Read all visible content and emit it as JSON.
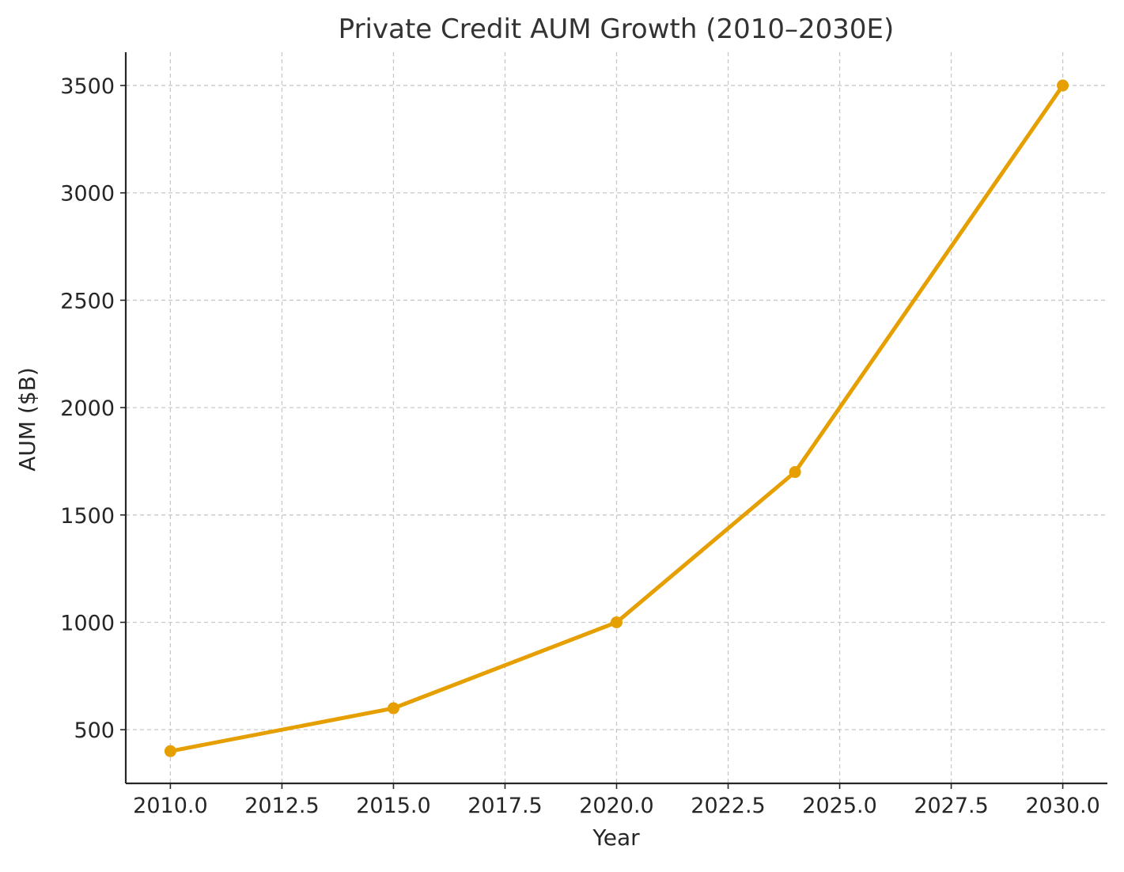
{
  "chart_data": {
    "type": "line",
    "title": "Private Credit AUM Growth (2010–2030E)",
    "xlabel": "Year",
    "ylabel": "AUM ($B)",
    "x": [
      2010,
      2015,
      2020,
      2024,
      2030
    ],
    "series": [
      {
        "values": [
          400,
          600,
          1000,
          1700,
          3500
        ],
        "color": "#E69F00"
      }
    ],
    "xlim": [
      2009.0,
      2031.0
    ],
    "ylim": [
      250,
      3655
    ],
    "xticks": [
      2010.0,
      2012.5,
      2015.0,
      2017.5,
      2020.0,
      2022.5,
      2025.0,
      2027.5,
      2030.0
    ],
    "xtick_labels": [
      "2010.0",
      "2012.5",
      "2015.0",
      "2017.5",
      "2020.0",
      "2022.5",
      "2025.0",
      "2027.5",
      "2030.0"
    ],
    "yticks": [
      500,
      1000,
      1500,
      2000,
      2500,
      3000,
      3500
    ],
    "ytick_labels": [
      "500",
      "1000",
      "1500",
      "2000",
      "2500",
      "3000",
      "3500"
    ],
    "grid": true,
    "grid_style": "dashed",
    "marker": "circle"
  }
}
